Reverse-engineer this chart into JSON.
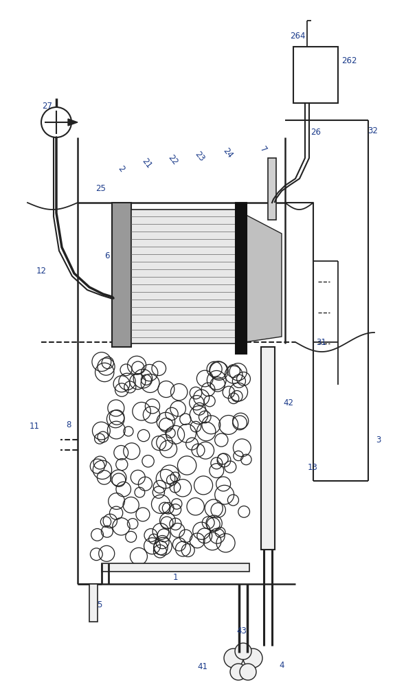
{
  "bg_color": "#ffffff",
  "lc": "#444444",
  "dc": "#222222",
  "lblc": "#1a3a8a",
  "fig_width": 5.91,
  "fig_height": 10.0,
  "dpi": 100
}
